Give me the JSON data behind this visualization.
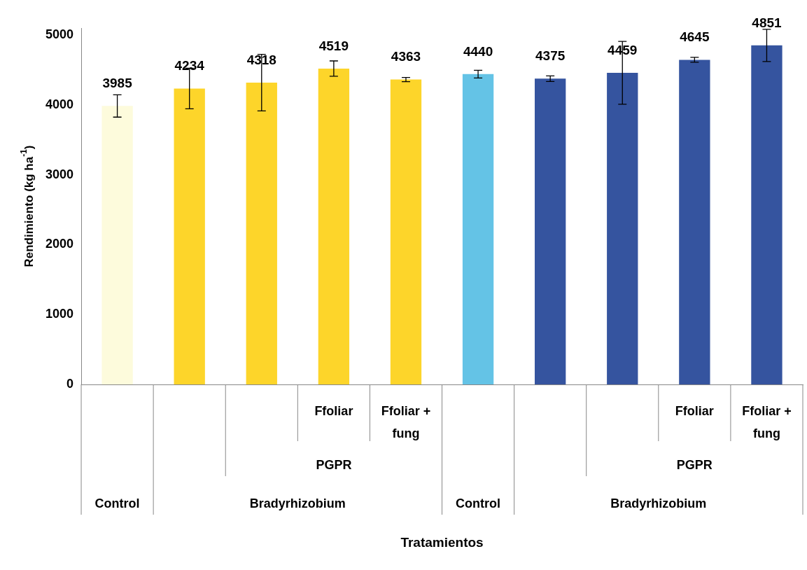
{
  "chart_data": {
    "type": "bar",
    "ylabel": "Rendimiento (kg ha$^{-1}$)",
    "categories": [
      null,
      null,
      null,
      null,
      null,
      null,
      null,
      null,
      null,
      null
    ],
    "values": [
      3985,
      4234,
      4318,
      4519,
      4363,
      4440,
      4375,
      4459,
      4645,
      4851
    ],
    "colors": [
      "#fdfbdc",
      "#fdd52a",
      "#fdd52a",
      "#fdd52a",
      "#fdd52a",
      "#64c3e6",
      "#35549f",
      "#35549f",
      "#35549f",
      "#35549f"
    ],
    "errors": [
      160,
      290,
      405,
      110,
      30,
      55,
      40,
      450,
      35,
      230
    ],
    "data_labels": true,
    "annotations": [
      "Ffoliar",
      "Ffoliar + fung",
      "PGPR",
      "Control",
      "Bradyrhizobium",
      "Ffoliar",
      "Ffoliar + fung",
      "PGPR",
      "Control",
      "Bradyrhizobium",
      "Tratamientos"
    ],
    "ylim": [
      0,
      5100
    ],
    "yticks": [
      0,
      1000,
      2000,
      3000,
      4000,
      5000
    ],
    "grid": false,
    "legend": false
  }
}
